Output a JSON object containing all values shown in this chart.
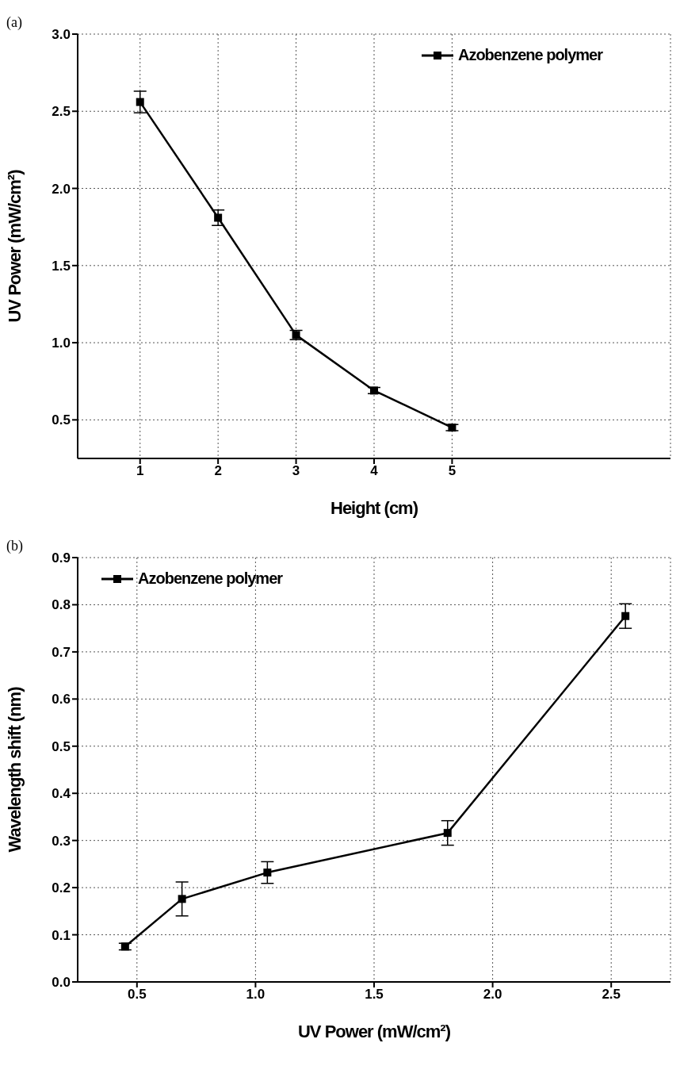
{
  "chart_data": [
    {
      "type": "line",
      "xlabel": "Height (cm)",
      "ylabel": "UV Power (mW/cm²)",
      "annotations": [
        "(a)"
      ],
      "x": [
        1,
        2,
        3,
        4,
        5
      ],
      "series": [
        {
          "name": "Azobenzene polymer",
          "color": "#000000",
          "values": [
            2.56,
            1.81,
            1.05,
            0.69,
            0.45
          ],
          "errors": [
            0.07,
            0.05,
            0.03,
            0.02,
            0.02
          ]
        }
      ],
      "xlim": [
        0.2,
        7.8
      ],
      "xticks": [
        1,
        2,
        3,
        4,
        5
      ],
      "ylim": [
        0.25,
        3.0
      ],
      "yticks": [
        {
          "value": 0.5,
          "label": "0.5"
        },
        {
          "value": 1,
          "label": "1.0"
        },
        {
          "value": 1.5,
          "label": "1.5"
        },
        {
          "value": 2,
          "label": "2.0"
        },
        {
          "value": 2.5,
          "label": "2.5"
        },
        {
          "value": 3,
          "label": "3.0"
        }
      ],
      "grid": true,
      "legend": "top right",
      "marker": "square",
      "line_style": "solid"
    },
    {
      "type": "line",
      "xlabel": "UV Power (mW/cm²)",
      "ylabel": "Wavelength shift (nm)",
      "annotations": [
        "(b)"
      ],
      "x": [
        0.45,
        0.69,
        1.05,
        1.81,
        2.56
      ],
      "series": [
        {
          "name": "Azobenzene polymer",
          "color": "#000000",
          "values": [
            0.075,
            0.176,
            0.232,
            0.316,
            0.776
          ],
          "errors": [
            0.007,
            0.036,
            0.023,
            0.026,
            0.026
          ]
        }
      ],
      "xlim": [
        0.25,
        2.75
      ],
      "xticks": [
        {
          "value": 0.5,
          "label": "0.5"
        },
        {
          "value": 1,
          "label": "1.0"
        },
        {
          "value": 1.5,
          "label": "1.5"
        },
        {
          "value": 2,
          "label": "2.0"
        },
        {
          "value": 2.5,
          "label": "2.5"
        }
      ],
      "ylim": [
        0,
        0.9
      ],
      "yticks": [
        {
          "value": 0,
          "label": "0.0"
        },
        0.1,
        0.2,
        0.3,
        0.4,
        0.5,
        0.6,
        0.7,
        0.8,
        0.9
      ],
      "grid": true,
      "legend": "top left",
      "marker": "square",
      "line_style": "solid"
    }
  ]
}
